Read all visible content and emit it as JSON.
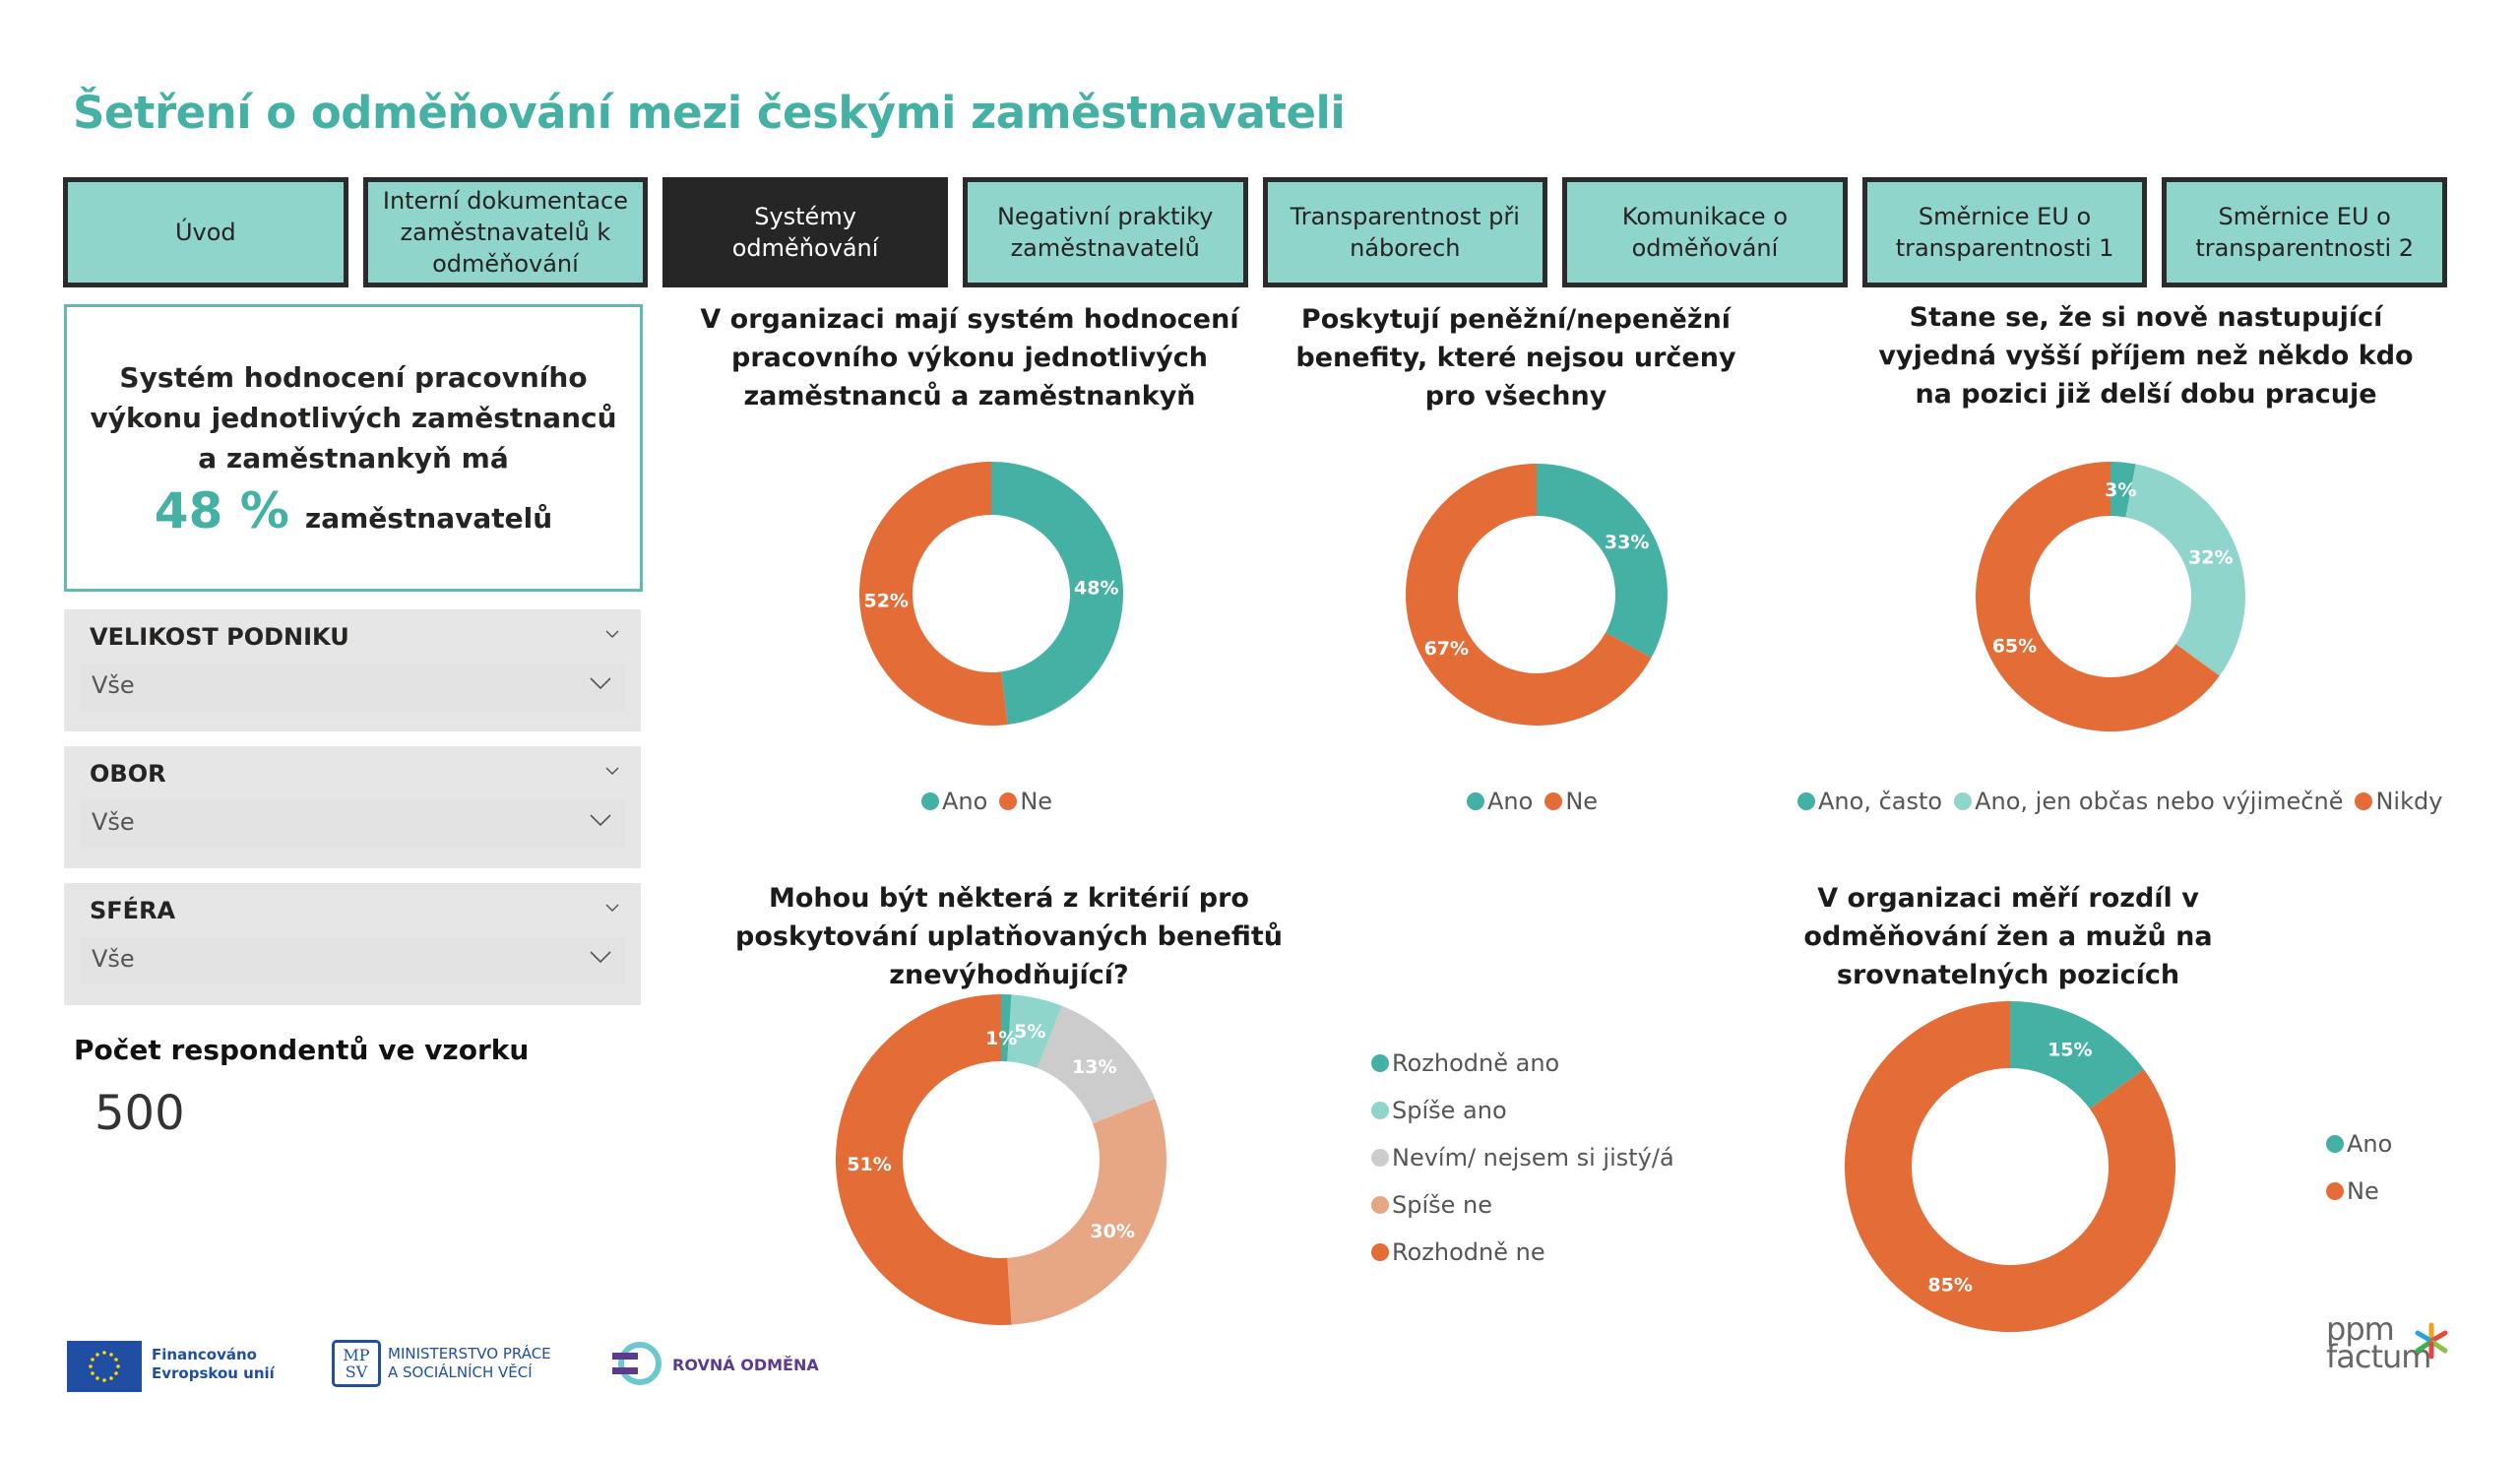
{
  "header": {
    "title": "Šetření o odměňování mezi českými zaměstnavateli"
  },
  "tabs": [
    {
      "label": "Úvod",
      "active": false
    },
    {
      "label": "Interní dokumentace zaměstnavatelů k odměňování",
      "active": false
    },
    {
      "label": "Systémy odměňování",
      "active": true
    },
    {
      "label": "Negativní praktiky zaměstnavatelů",
      "active": false
    },
    {
      "label": "Transparentnost při náborech",
      "active": false
    },
    {
      "label": "Komunikace o odměňování",
      "active": false
    },
    {
      "label": "Směrnice EU o transparentnosti 1",
      "active": false
    },
    {
      "label": "Směrnice EU o transparentnosti 2",
      "active": false
    }
  ],
  "kpi": {
    "text": "Systém hodnocení pracovního výkonu jednotlivých zaměstnanců a zaměstnankyň má",
    "value": "48 %",
    "unit": "zaměstnavatelů"
  },
  "filters": [
    {
      "title": "VELIKOST PODNIKU",
      "value": "Vše"
    },
    {
      "title": "OBOR",
      "value": "Vše"
    },
    {
      "title": "SFÉRA",
      "value": "Vše"
    }
  ],
  "respondents": {
    "label": "Počet respondentů ve vzorku",
    "value": "500"
  },
  "colors": {
    "teal": "#45b1a4",
    "light_teal": "#90d5cc",
    "gray": "#cccccc",
    "peach": "#e8a784",
    "orange": "#e46c36",
    "title": "#45b1a4"
  },
  "chart_data": [
    {
      "type": "pie",
      "variant": "donut",
      "title": "V organizaci mají systém hodnocení pracovního výkonu jednotlivých zaměstnanců a zaměstnankyň",
      "categories": [
        "Ano",
        "Ne"
      ],
      "values": [
        48,
        52
      ],
      "labels": [
        "48%",
        "52%"
      ],
      "colors": [
        "#45b1a4",
        "#e46c36"
      ],
      "legend_position": "bottom"
    },
    {
      "type": "pie",
      "variant": "donut",
      "title": "Poskytují peněžní/nepeněžní benefity, které nejsou určeny pro všechny",
      "categories": [
        "Ano",
        "Ne"
      ],
      "values": [
        33,
        67
      ],
      "labels": [
        "33%",
        "67%"
      ],
      "colors": [
        "#45b1a4",
        "#e46c36"
      ],
      "legend_position": "bottom"
    },
    {
      "type": "pie",
      "variant": "donut",
      "title": "Stane se, že si nově nastupující vyjedná vyšší příjem než někdo kdo na pozici již delší dobu pracuje",
      "categories": [
        "Ano, často",
        "Ano, jen občas nebo výjimečně",
        "Nikdy"
      ],
      "values": [
        3,
        32,
        65
      ],
      "labels": [
        "3%",
        "32%",
        "65%"
      ],
      "colors": [
        "#45b1a4",
        "#90d5cc",
        "#e46c36"
      ],
      "legend_position": "bottom"
    },
    {
      "type": "pie",
      "variant": "donut",
      "title": "Mohou být některá z kritérií pro poskytování uplatňovaných benefitů znevýhodňující?",
      "categories": [
        "Rozhodně ano",
        "Spíše ano",
        "Nevím/ nejsem si jistý/á",
        "Spíše ne",
        "Rozhodně ne"
      ],
      "values": [
        1,
        5,
        13,
        30,
        51
      ],
      "labels": [
        "1%",
        "5%",
        "13%",
        "30%",
        "51%"
      ],
      "colors": [
        "#45b1a4",
        "#90d5cc",
        "#cccccc",
        "#e8a784",
        "#e46c36"
      ],
      "legend_position": "right"
    },
    {
      "type": "pie",
      "variant": "donut",
      "title": "V organizaci měří rozdíl v odměňování žen a mužů na srovnatelných pozicích",
      "categories": [
        "Ano",
        "Ne"
      ],
      "values": [
        15,
        85
      ],
      "labels": [
        "15%",
        "85%"
      ],
      "colors": [
        "#45b1a4",
        "#e46c36"
      ],
      "legend_position": "right"
    }
  ],
  "footer": {
    "eu_text_1": "Financováno",
    "eu_text_2": "Evropskou unií",
    "mpsv_mark_1": "MP",
    "mpsv_mark_2": "SV",
    "mpsv_text_1": "MINISTERSTVO PRÁCE",
    "mpsv_text_2": "A SOCIÁLNÍCH VĚCÍ",
    "rovna_text": "ROVNÁ ODMĚNA",
    "ppm_text_1": "ppm",
    "ppm_text_2": "factum"
  }
}
